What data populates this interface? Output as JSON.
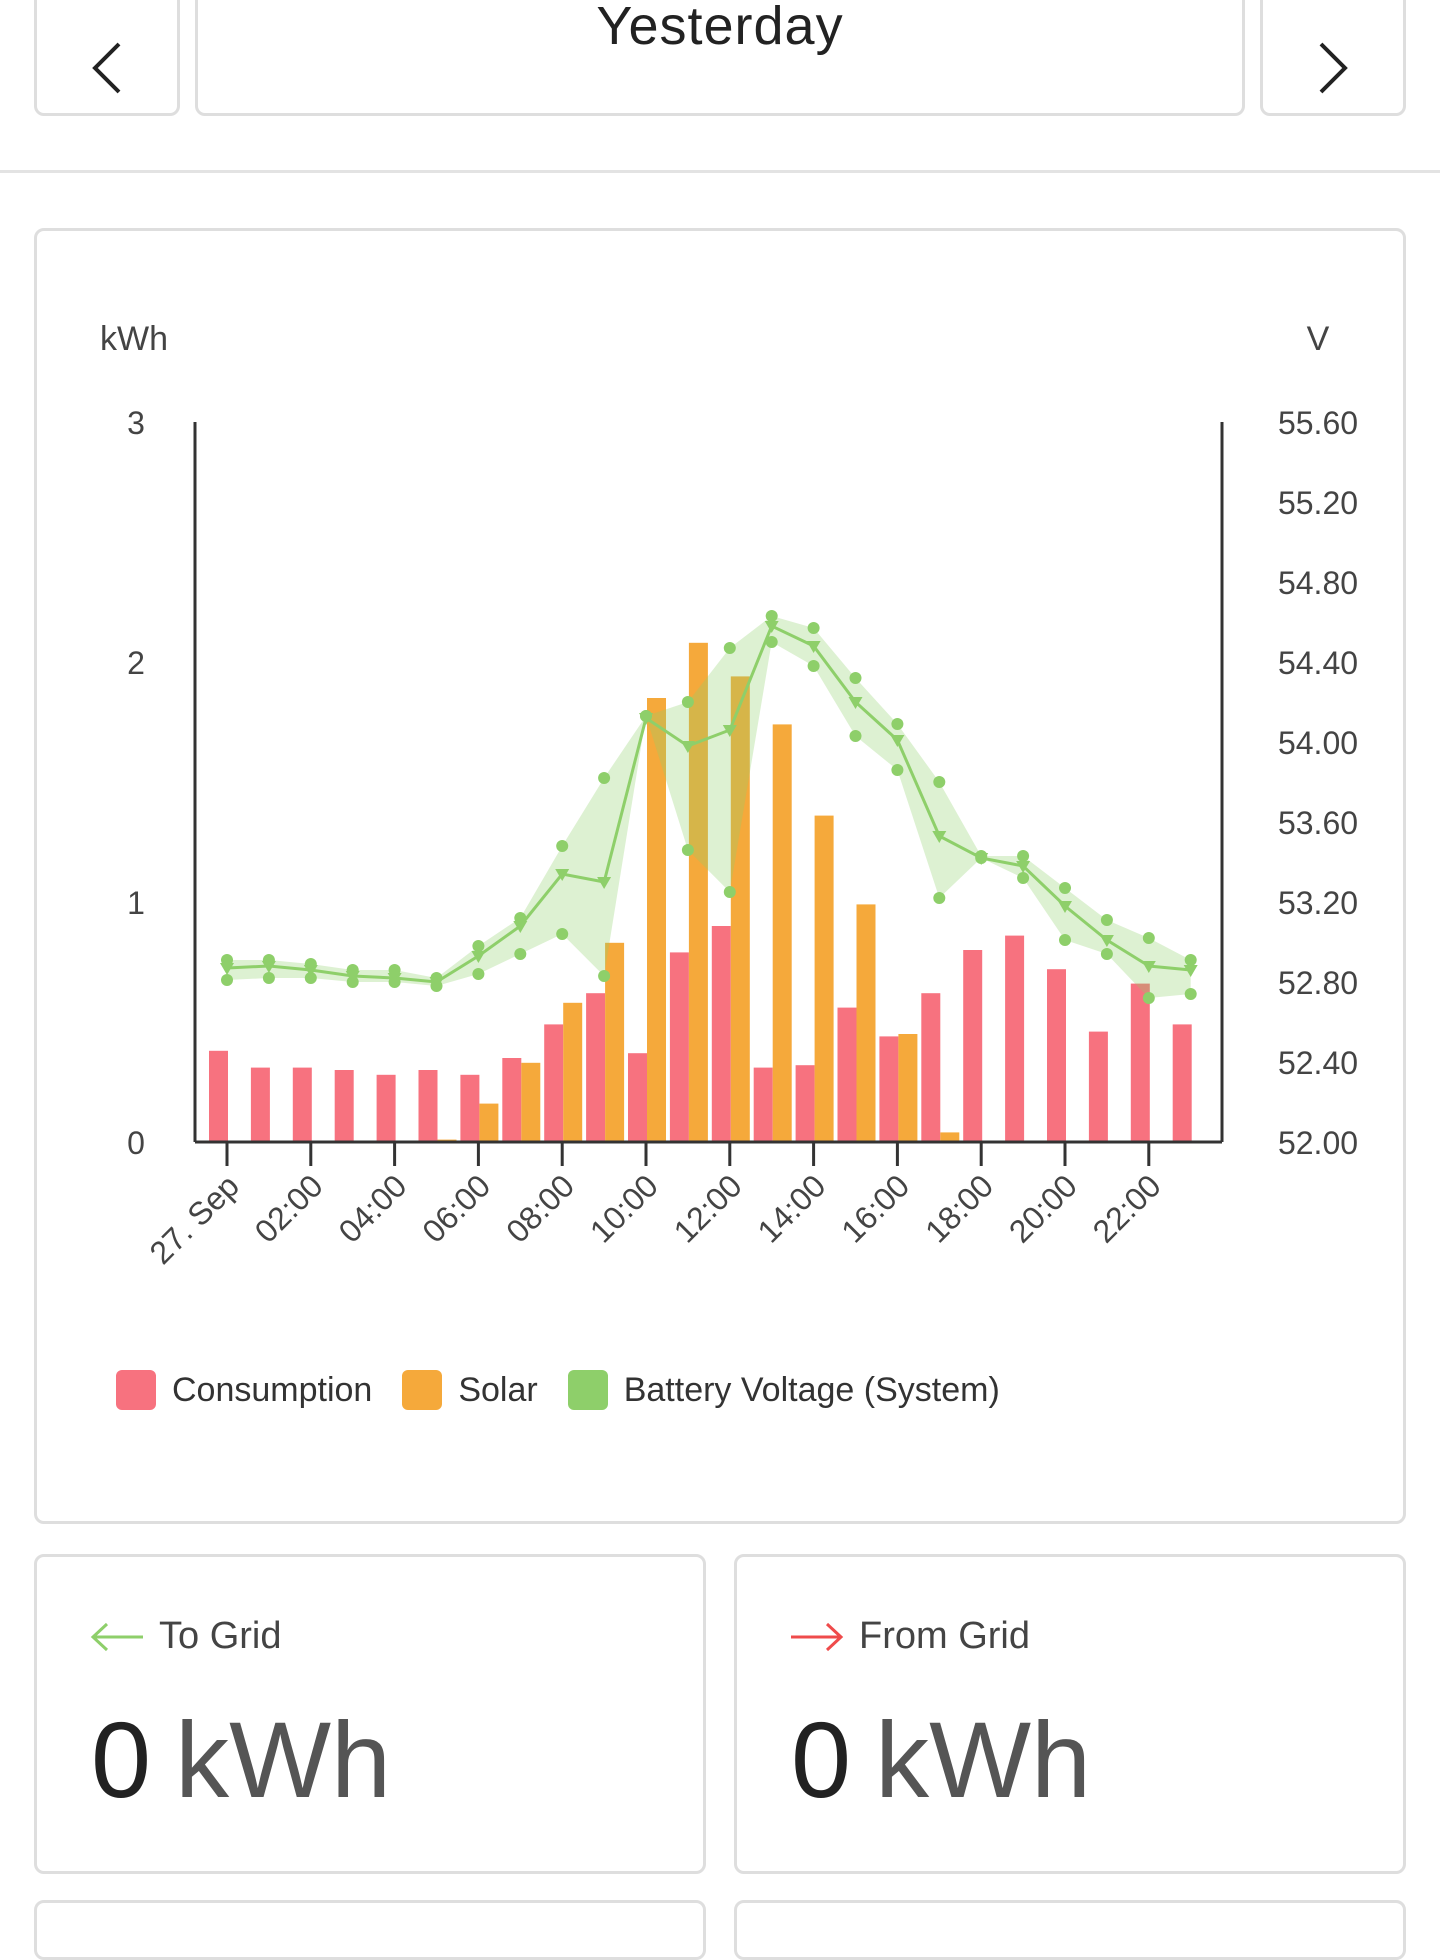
{
  "header": {
    "date_label": "Yesterday",
    "prev_icon": "chevron-left-icon",
    "next_icon": "chevron-right-icon"
  },
  "chart_data": {
    "type": "bar",
    "left_axis_label": "kWh",
    "right_axis_label": "V",
    "y_left": {
      "ticks": [
        "0",
        "1",
        "2",
        "3"
      ],
      "range": [
        0,
        3
      ]
    },
    "y_right": {
      "ticks": [
        "52.00",
        "52.40",
        "52.80",
        "53.20",
        "53.60",
        "54.00",
        "54.40",
        "54.80",
        "55.20",
        "55.60"
      ],
      "range": [
        52.0,
        55.6
      ]
    },
    "x_tick_labels": [
      "27. Sep",
      "02:00",
      "04:00",
      "06:00",
      "08:00",
      "10:00",
      "12:00",
      "14:00",
      "16:00",
      "18:00",
      "20:00",
      "22:00"
    ],
    "hours": [
      0,
      1,
      2,
      3,
      4,
      5,
      6,
      7,
      8,
      9,
      10,
      11,
      12,
      13,
      14,
      15,
      16,
      17,
      18,
      19,
      20,
      21,
      22,
      23
    ],
    "series": [
      {
        "name": "Consumption",
        "color": "#f7727f",
        "values": [
          0.38,
          0.31,
          0.31,
          0.3,
          0.28,
          0.3,
          0.28,
          0.35,
          0.49,
          0.62,
          0.37,
          0.79,
          0.9,
          0.31,
          0.32,
          0.56,
          0.44,
          0.62,
          0.8,
          0.86,
          0.72,
          0.46,
          0.66,
          0.49
        ]
      },
      {
        "name": "Solar",
        "color": "#f5a93b",
        "values": [
          0,
          0,
          0,
          0,
          0,
          0.01,
          0.16,
          0.33,
          0.58,
          0.83,
          1.85,
          2.08,
          1.94,
          1.74,
          1.36,
          0.99,
          0.45,
          0.04,
          0,
          0,
          0,
          0,
          0,
          0
        ]
      },
      {
        "name": "Battery Voltage (System)",
        "color": "#8ecf6a",
        "avg": [
          52.87,
          52.88,
          52.86,
          52.83,
          52.82,
          52.8,
          52.93,
          53.08,
          53.34,
          53.3,
          54.12,
          53.98,
          54.06,
          54.58,
          54.48,
          54.2,
          54.01,
          53.53,
          53.42,
          53.38,
          53.18,
          53.01,
          52.88,
          52.86
        ],
        "min": [
          52.81,
          52.82,
          52.82,
          52.8,
          52.8,
          52.78,
          52.84,
          52.94,
          53.04,
          52.83,
          54.13,
          53.46,
          53.25,
          54.5,
          54.38,
          54.03,
          53.86,
          53.22,
          53.42,
          53.32,
          53.01,
          52.94,
          52.72,
          52.74
        ],
        "max": [
          52.91,
          52.91,
          52.89,
          52.86,
          52.86,
          52.82,
          52.98,
          53.12,
          53.48,
          53.82,
          54.13,
          54.2,
          54.47,
          54.63,
          54.57,
          54.32,
          54.09,
          53.8,
          53.43,
          53.43,
          53.27,
          53.11,
          53.02,
          52.91
        ]
      }
    ],
    "legend": [
      "Consumption",
      "Solar",
      "Battery Voltage (System)"
    ]
  },
  "to_grid": {
    "title": "To Grid",
    "value": "0",
    "unit": "kWh",
    "color": "#8ecf6a"
  },
  "from_grid": {
    "title": "From Grid",
    "value": "0",
    "unit": "kWh",
    "color": "#ef4b4b"
  }
}
